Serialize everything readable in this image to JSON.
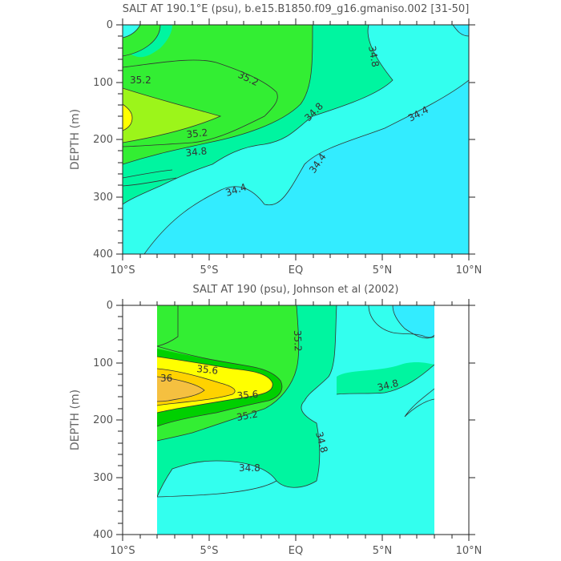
{
  "chart_data": [
    {
      "type": "contour",
      "title": "SALT AT 190.1°E (psu), b.e15.B1850.f09_g16.gmaniso.002 [31-50]",
      "ylabel": "DEPTH (m)",
      "xlabel": "",
      "x_ticks": [
        "10°S",
        "5°S",
        "EQ",
        "5°N",
        "10°N"
      ],
      "x_range_deg": [
        -10,
        10
      ],
      "y_ticks": [
        0,
        100,
        200,
        300,
        400
      ],
      "ylim": [
        400,
        0
      ],
      "contour_labels": [
        {
          "text": "35.2",
          "x": -9.1,
          "y": 98
        },
        {
          "text": "35.2",
          "x": -3.5,
          "y": 90
        },
        {
          "text": "35.2",
          "x": -4.5,
          "y": 193
        },
        {
          "text": "34.8",
          "x": -5.7,
          "y": 221
        },
        {
          "text": "34.8",
          "x": 1.0,
          "y": 155
        },
        {
          "text": "34.8",
          "x": 4.0,
          "y": 55
        },
        {
          "text": "34.4",
          "x": -6.5,
          "y": 282
        },
        {
          "text": "34.4",
          "x": 1.3,
          "y": 252
        },
        {
          "text": "34.4",
          "x": 7.0,
          "y": 158
        }
      ],
      "colors": {
        "lt_34_4": "#33ecff",
        "34_4_34_8": "#33ffee",
        "34_8_35_2": "#00f5a0",
        "35_2_35_6": "#33ee33",
        "35_6_36_0": "#9cf51a",
        "36_0_plus": "#ffff00"
      }
    },
    {
      "type": "contour",
      "title": "SALT AT 190 (psu), Johnson et al (2002)",
      "ylabel": "DEPTH (m)",
      "xlabel": "",
      "x_ticks": [
        "10°S",
        "5°S",
        "EQ",
        "5°N",
        "10°N"
      ],
      "x_range_deg": [
        -10,
        10
      ],
      "data_x_range_deg": [
        -8,
        8
      ],
      "y_ticks": [
        0,
        100,
        200,
        300,
        400
      ],
      "ylim": [
        400,
        0
      ],
      "contour_labels": [
        {
          "text": "36",
          "x": -7.4,
          "y": 127
        },
        {
          "text": "35.6",
          "x": -4.8,
          "y": 110
        },
        {
          "text": "35.6",
          "x": -3.0,
          "y": 162
        },
        {
          "text": "35.2",
          "x": 0.1,
          "y": 70
        },
        {
          "text": "35.2",
          "x": -4.0,
          "y": 190
        },
        {
          "text": "34.8",
          "x": 5.0,
          "y": 142
        },
        {
          "text": "34.8",
          "x": 1.3,
          "y": 240
        },
        {
          "text": "34.8",
          "x": -3.0,
          "y": 310
        }
      ],
      "colors": {
        "34_4_34_8": "#33ffee",
        "lt_34_4": "#33ecff",
        "34_8_35_2": "#00f5a0",
        "35_2_35_6": "#33ee33",
        "35_6_36_0": "#00d000",
        "35_8_36_0": "#ffff00",
        "36_0_plus": "#ffd200",
        "36_2_plus": "#f5c040"
      }
    }
  ]
}
